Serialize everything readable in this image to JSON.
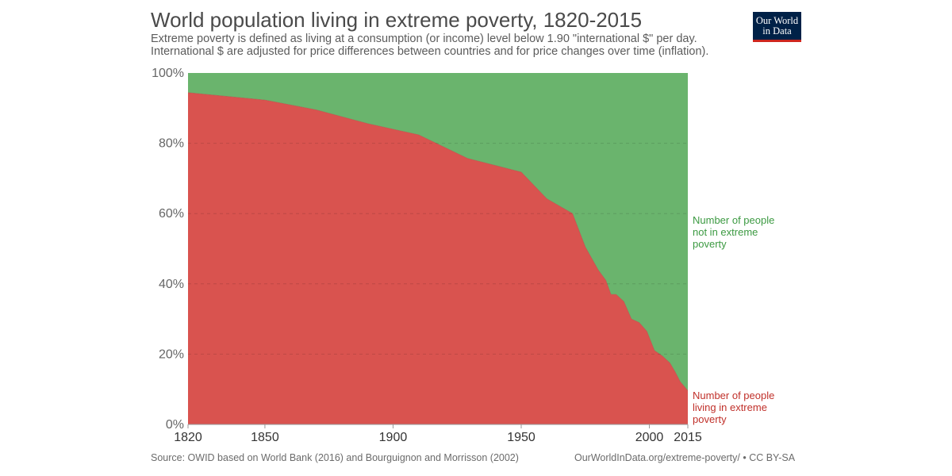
{
  "header": {
    "title": "World population living in extreme poverty, 1820-2015",
    "subtitle_lines": [
      "Extreme poverty is defined as living at a consumption (or income) level below 1.90 \"international $\" per day.",
      "International $ are adjusted for price differences between countries and for price changes over time (inflation)."
    ]
  },
  "logo": {
    "line1": "Our World",
    "line2": "in Data",
    "bg": "#002147",
    "accent": "#ce261e"
  },
  "chart_data": {
    "type": "area",
    "stacked": true,
    "percent": true,
    "title": "World population living in extreme poverty, 1820-2015",
    "x": [
      1820,
      1850,
      1870,
      1890,
      1910,
      1929,
      1950,
      1960,
      1970,
      1975,
      1980,
      1983,
      1985,
      1987,
      1990,
      1993,
      1996,
      1999,
      2002,
      2005,
      2008,
      2010,
      2012,
      2015
    ],
    "series": [
      {
        "name": "Number of people living in extreme poverty",
        "color": "#d9534f",
        "values": [
          94.4,
          92.3,
          89.5,
          85.6,
          82.4,
          75.7,
          71.8,
          64.2,
          60.0,
          50.5,
          44.0,
          41.0,
          37.0,
          37.0,
          35.0,
          30.0,
          29.0,
          26.5,
          21.0,
          19.5,
          17.5,
          15.0,
          12.2,
          9.6
        ]
      },
      {
        "name": "Number of people not in extreme poverty",
        "color": "#6ab46d",
        "values": [
          5.6,
          7.7,
          10.5,
          14.4,
          17.6,
          24.3,
          28.2,
          35.8,
          40.0,
          49.5,
          56.0,
          59.0,
          63.0,
          63.0,
          65.0,
          70.0,
          71.0,
          73.5,
          79.0,
          80.5,
          82.5,
          85.0,
          87.8,
          90.4
        ]
      }
    ],
    "series_labels": {
      "not_poor": [
        "Number of people",
        "not in extreme",
        "poverty"
      ],
      "poor": [
        "Number of people",
        "living in extreme",
        "poverty"
      ]
    },
    "xlim": [
      1820,
      2015
    ],
    "ylim": [
      0,
      100
    ],
    "y_ticks": [
      {
        "value": 0,
        "label": "0%"
      },
      {
        "value": 20,
        "label": "20%"
      },
      {
        "value": 40,
        "label": "40%"
      },
      {
        "value": 60,
        "label": "60%"
      },
      {
        "value": 80,
        "label": "80%"
      },
      {
        "value": 100,
        "label": "100%"
      }
    ],
    "x_ticks": [
      {
        "value": 1820,
        "label": "1820"
      },
      {
        "value": 1850,
        "label": "1850"
      },
      {
        "value": 1900,
        "label": "1900"
      },
      {
        "value": 1950,
        "label": "1950"
      },
      {
        "value": 2000,
        "label": "2000"
      },
      {
        "value": 2015,
        "label": "2015"
      }
    ],
    "grid": true,
    "legend": "inline-right"
  },
  "footer": {
    "source": "Source: OWID based on World Bank (2016) and Bourguignon and Morrisson (2002)",
    "license": "OurWorldInData.org/extreme-poverty/ • CC BY-SA"
  }
}
